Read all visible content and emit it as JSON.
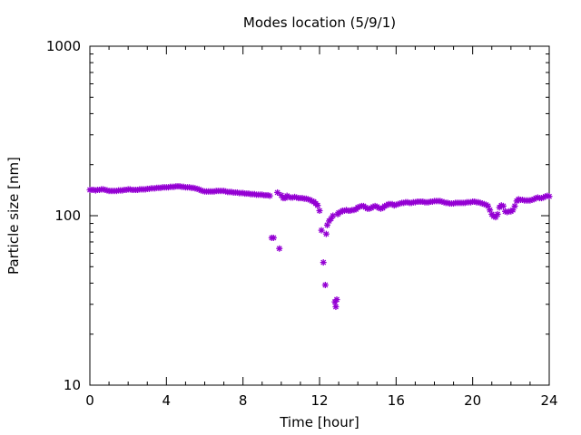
{
  "chart_data": {
    "type": "scatter",
    "title": "Modes location (5/9/1)",
    "xlabel": "Time [hour]",
    "ylabel": "Particle size [nm]",
    "xlim": [
      0,
      24
    ],
    "ylim": [
      10,
      1000
    ],
    "y_scale": "log",
    "x_ticks": [
      0,
      4,
      8,
      12,
      16,
      20,
      24
    ],
    "x_tick_labels": [
      "0",
      "4",
      "8",
      "12",
      "16",
      "20",
      "24"
    ],
    "y_ticks": [
      10,
      100,
      1000
    ],
    "y_tick_labels": [
      "10",
      "100",
      "1000"
    ],
    "grid": false,
    "marker": "star",
    "series_color": "#9400d3",
    "points": [
      [
        0.0,
        142
      ],
      [
        0.1,
        142
      ],
      [
        0.2,
        142
      ],
      [
        0.3,
        141
      ],
      [
        0.4,
        142
      ],
      [
        0.5,
        142
      ],
      [
        0.6,
        143
      ],
      [
        0.7,
        143
      ],
      [
        0.8,
        142
      ],
      [
        0.9,
        141
      ],
      [
        1.0,
        140
      ],
      [
        1.1,
        140
      ],
      [
        1.2,
        140
      ],
      [
        1.3,
        140
      ],
      [
        1.4,
        140
      ],
      [
        1.5,
        141
      ],
      [
        1.6,
        141
      ],
      [
        1.7,
        141
      ],
      [
        1.8,
        142
      ],
      [
        1.9,
        142
      ],
      [
        2.0,
        143
      ],
      [
        2.1,
        143
      ],
      [
        2.2,
        142
      ],
      [
        2.3,
        142
      ],
      [
        2.4,
        142
      ],
      [
        2.5,
        142
      ],
      [
        2.6,
        143
      ],
      [
        2.7,
        143
      ],
      [
        2.8,
        143
      ],
      [
        2.9,
        143
      ],
      [
        3.0,
        144
      ],
      [
        3.1,
        144
      ],
      [
        3.2,
        145
      ],
      [
        3.3,
        145
      ],
      [
        3.4,
        145
      ],
      [
        3.5,
        146
      ],
      [
        3.6,
        146
      ],
      [
        3.7,
        146
      ],
      [
        3.8,
        147
      ],
      [
        3.9,
        147
      ],
      [
        4.0,
        147
      ],
      [
        4.1,
        147
      ],
      [
        4.2,
        148
      ],
      [
        4.3,
        148
      ],
      [
        4.4,
        148
      ],
      [
        4.5,
        149
      ],
      [
        4.6,
        149
      ],
      [
        4.7,
        149
      ],
      [
        4.8,
        148
      ],
      [
        4.9,
        148
      ],
      [
        5.0,
        147
      ],
      [
        5.1,
        147
      ],
      [
        5.2,
        147
      ],
      [
        5.3,
        146
      ],
      [
        5.4,
        146
      ],
      [
        5.5,
        145
      ],
      [
        5.6,
        144
      ],
      [
        5.7,
        143
      ],
      [
        5.8,
        141
      ],
      [
        5.9,
        140
      ],
      [
        6.0,
        139
      ],
      [
        6.1,
        139
      ],
      [
        6.2,
        139
      ],
      [
        6.3,
        139
      ],
      [
        6.4,
        139
      ],
      [
        6.5,
        139
      ],
      [
        6.6,
        140
      ],
      [
        6.7,
        140
      ],
      [
        6.8,
        140
      ],
      [
        6.9,
        140
      ],
      [
        7.0,
        140
      ],
      [
        7.1,
        139
      ],
      [
        7.2,
        138
      ],
      [
        7.3,
        138
      ],
      [
        7.4,
        138
      ],
      [
        7.5,
        137
      ],
      [
        7.6,
        137
      ],
      [
        7.7,
        137
      ],
      [
        7.8,
        136
      ],
      [
        7.9,
        136
      ],
      [
        8.0,
        136
      ],
      [
        8.1,
        135
      ],
      [
        8.2,
        135
      ],
      [
        8.3,
        135
      ],
      [
        8.4,
        134
      ],
      [
        8.5,
        134
      ],
      [
        8.6,
        134
      ],
      [
        8.7,
        133
      ],
      [
        8.8,
        133
      ],
      [
        8.9,
        133
      ],
      [
        9.0,
        133
      ],
      [
        9.1,
        132
      ],
      [
        9.2,
        132
      ],
      [
        9.3,
        132
      ],
      [
        9.4,
        131
      ],
      [
        9.5,
        74
      ],
      [
        9.6,
        74
      ],
      [
        9.8,
        137
      ],
      [
        9.9,
        64
      ],
      [
        10.0,
        132
      ],
      [
        10.1,
        127
      ],
      [
        10.2,
        127
      ],
      [
        10.3,
        131
      ],
      [
        10.4,
        129
      ],
      [
        10.5,
        128
      ],
      [
        10.6,
        128
      ],
      [
        10.7,
        129
      ],
      [
        10.8,
        128
      ],
      [
        10.9,
        127
      ],
      [
        11.0,
        127
      ],
      [
        11.1,
        127
      ],
      [
        11.2,
        126
      ],
      [
        11.3,
        126
      ],
      [
        11.4,
        125
      ],
      [
        11.5,
        124
      ],
      [
        11.6,
        122
      ],
      [
        11.7,
        121
      ],
      [
        11.8,
        118
      ],
      [
        11.9,
        115
      ],
      [
        12.0,
        107
      ],
      [
        12.1,
        82
      ],
      [
        12.2,
        53
      ],
      [
        12.3,
        39
      ],
      [
        12.35,
        78
      ],
      [
        12.4,
        88
      ],
      [
        12.5,
        93
      ],
      [
        12.6,
        96
      ],
      [
        12.7,
        100
      ],
      [
        12.8,
        31
      ],
      [
        12.85,
        29
      ],
      [
        12.9,
        32
      ],
      [
        12.95,
        102
      ],
      [
        13.0,
        104
      ],
      [
        13.1,
        105
      ],
      [
        13.2,
        107
      ],
      [
        13.3,
        107
      ],
      [
        13.4,
        108
      ],
      [
        13.5,
        107
      ],
      [
        13.6,
        107
      ],
      [
        13.7,
        108
      ],
      [
        13.8,
        108
      ],
      [
        13.9,
        109
      ],
      [
        14.0,
        112
      ],
      [
        14.1,
        113
      ],
      [
        14.2,
        114
      ],
      [
        14.3,
        114
      ],
      [
        14.4,
        112
      ],
      [
        14.5,
        110
      ],
      [
        14.6,
        110
      ],
      [
        14.7,
        111
      ],
      [
        14.8,
        113
      ],
      [
        14.9,
        114
      ],
      [
        15.0,
        113
      ],
      [
        15.1,
        111
      ],
      [
        15.2,
        110
      ],
      [
        15.3,
        111
      ],
      [
        15.4,
        114
      ],
      [
        15.5,
        115
      ],
      [
        15.6,
        117
      ],
      [
        15.7,
        117
      ],
      [
        15.8,
        117
      ],
      [
        15.9,
        115
      ],
      [
        16.0,
        116
      ],
      [
        16.1,
        117
      ],
      [
        16.2,
        118
      ],
      [
        16.3,
        119
      ],
      [
        16.4,
        119
      ],
      [
        16.5,
        120
      ],
      [
        16.6,
        120
      ],
      [
        16.7,
        119
      ],
      [
        16.8,
        119
      ],
      [
        16.9,
        120
      ],
      [
        17.0,
        120
      ],
      [
        17.1,
        121
      ],
      [
        17.2,
        121
      ],
      [
        17.3,
        121
      ],
      [
        17.4,
        121
      ],
      [
        17.5,
        120
      ],
      [
        17.6,
        120
      ],
      [
        17.7,
        120
      ],
      [
        17.8,
        121
      ],
      [
        17.9,
        121
      ],
      [
        18.0,
        122
      ],
      [
        18.1,
        122
      ],
      [
        18.2,
        122
      ],
      [
        18.3,
        122
      ],
      [
        18.4,
        121
      ],
      [
        18.5,
        120
      ],
      [
        18.6,
        119
      ],
      [
        18.7,
        119
      ],
      [
        18.8,
        118
      ],
      [
        18.9,
        118
      ],
      [
        19.0,
        118
      ],
      [
        19.1,
        119
      ],
      [
        19.2,
        119
      ],
      [
        19.3,
        119
      ],
      [
        19.4,
        119
      ],
      [
        19.5,
        119
      ],
      [
        19.6,
        119
      ],
      [
        19.7,
        120
      ],
      [
        19.8,
        120
      ],
      [
        19.9,
        120
      ],
      [
        20.0,
        121
      ],
      [
        20.1,
        121
      ],
      [
        20.2,
        120
      ],
      [
        20.3,
        120
      ],
      [
        20.4,
        119
      ],
      [
        20.5,
        118
      ],
      [
        20.6,
        117
      ],
      [
        20.7,
        116
      ],
      [
        20.8,
        114
      ],
      [
        20.9,
        108
      ],
      [
        21.0,
        102
      ],
      [
        21.1,
        99
      ],
      [
        21.2,
        98
      ],
      [
        21.3,
        102
      ],
      [
        21.4,
        112
      ],
      [
        21.5,
        115
      ],
      [
        21.6,
        114
      ],
      [
        21.7,
        106
      ],
      [
        21.8,
        105
      ],
      [
        21.9,
        106
      ],
      [
        22.0,
        106
      ],
      [
        22.1,
        108
      ],
      [
        22.2,
        114
      ],
      [
        22.3,
        122
      ],
      [
        22.4,
        125
      ],
      [
        22.5,
        124
      ],
      [
        22.6,
        124
      ],
      [
        22.7,
        123
      ],
      [
        22.8,
        123
      ],
      [
        22.9,
        123
      ],
      [
        23.0,
        123
      ],
      [
        23.1,
        124
      ],
      [
        23.2,
        125
      ],
      [
        23.3,
        127
      ],
      [
        23.4,
        128
      ],
      [
        23.5,
        127
      ],
      [
        23.6,
        127
      ],
      [
        23.7,
        128
      ],
      [
        23.8,
        130
      ],
      [
        23.9,
        131
      ],
      [
        24.0,
        130
      ]
    ]
  }
}
